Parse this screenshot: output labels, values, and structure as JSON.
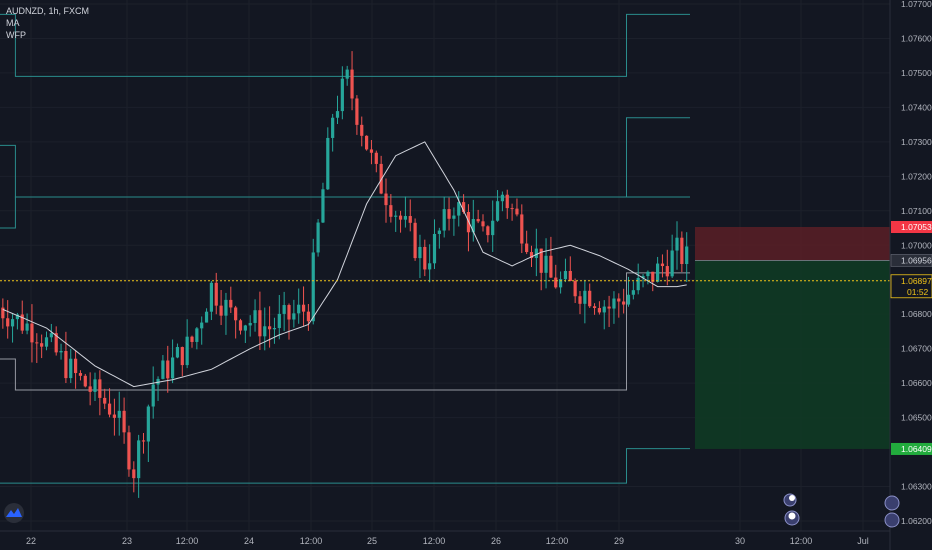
{
  "legend": {
    "symbol_line": "AUDNZD, 1h, FXCM",
    "indicator_1": "MA",
    "indicator_2": "WFP"
  },
  "colors": {
    "background": "#131722",
    "up_candle": "#26a69a",
    "down_candle": "#ef5350",
    "ma_line": "#d1d4dc",
    "pivot_line": "#2a8c8c",
    "stop_zone": "#5b1e26",
    "target_zone": "#0f3a24",
    "current_price": "#f0c419",
    "stop_tag": "#f23645",
    "target_tag": "#22ab3d"
  },
  "chart_data": {
    "type": "candlestick",
    "symbol": "AUDNZD",
    "timeframe": "1h",
    "source": "FXCM",
    "indicators": [
      "MA",
      "WFP"
    ],
    "y_ticks": [
      "1.07700",
      "1.07600",
      "1.07500",
      "1.07400",
      "1.07300",
      "1.07200",
      "1.07100",
      "1.07000",
      "1.06900",
      "1.06800",
      "1.06700",
      "1.06600",
      "1.06500",
      "1.06300",
      "1.06200"
    ],
    "x_ticks": [
      "22",
      "23",
      "12:00",
      "24",
      "12:00",
      "25",
      "12:00",
      "26",
      "12:00",
      "29",
      "30",
      "12:00",
      "Jul"
    ],
    "ylim": [
      1.0619,
      1.0775
    ],
    "current_price": {
      "value": 1.06897,
      "label": "1.06897",
      "countdown": "01:52"
    },
    "stop_level": {
      "value": 1.07053,
      "label": "1.07053"
    },
    "entry_level": {
      "value": 1.06956,
      "label": "1.06956"
    },
    "target_level": {
      "value": 1.06409,
      "label": "1.06409"
    },
    "trend": [
      [
        0,
        1.0682
      ],
      [
        8,
        1.0675
      ],
      [
        16,
        1.0662
      ],
      [
        24,
        1.0652
      ],
      [
        28,
        1.0635
      ],
      [
        32,
        1.066
      ],
      [
        40,
        1.0672
      ],
      [
        44,
        1.0688
      ],
      [
        48,
        1.068
      ],
      [
        56,
        1.0676
      ],
      [
        64,
        1.0682
      ],
      [
        66,
        1.0705
      ],
      [
        69,
        1.0738
      ],
      [
        72,
        1.0748
      ],
      [
        78,
        1.072
      ],
      [
        84,
        1.0705
      ],
      [
        88,
        1.0695
      ],
      [
        94,
        1.0712
      ],
      [
        100,
        1.0702
      ],
      [
        104,
        1.0715
      ],
      [
        110,
        1.07
      ],
      [
        114,
        1.069
      ],
      [
        122,
        1.0686
      ],
      [
        126,
        1.0682
      ],
      [
        134,
        1.069
      ],
      [
        140,
        1.0698
      ],
      [
        144,
        1.0694
      ]
    ],
    "ma_anchors": [
      [
        0,
        1.0682
      ],
      [
        10,
        1.0676
      ],
      [
        20,
        1.0665
      ],
      [
        28,
        1.0659
      ],
      [
        36,
        1.0661
      ],
      [
        44,
        1.0664
      ],
      [
        52,
        1.067
      ],
      [
        58,
        1.0674
      ],
      [
        64,
        1.0677
      ],
      [
        70,
        1.069
      ],
      [
        76,
        1.0712
      ],
      [
        82,
        1.0726
      ],
      [
        88,
        1.073
      ],
      [
        94,
        1.0716
      ],
      [
        100,
        1.0698
      ],
      [
        106,
        1.0694
      ],
      [
        112,
        1.0698
      ],
      [
        118,
        1.07
      ],
      [
        124,
        1.0697
      ],
      [
        130,
        1.0693
      ],
      [
        136,
        1.0688
      ],
      [
        140,
        1.0688
      ],
      [
        144,
        1.0689
      ]
    ],
    "pivot_levels": [
      {
        "color": "teal",
        "segments": [
          [
            -8,
            4,
            1.0767
          ],
          [
            4,
            130,
            1.0749
          ],
          [
            130,
            144,
            1.0767
          ]
        ]
      },
      {
        "color": "teal",
        "segments": [
          [
            -8,
            4,
            1.0729
          ],
          [
            4,
            130,
            1.0714
          ],
          [
            130,
            144,
            1.0737
          ]
        ]
      },
      {
        "color": "teal",
        "segments": [
          [
            -8,
            4,
            1.0705
          ],
          [
            4,
            130,
            1.0714
          ],
          [
            130,
            144,
            1.0714
          ]
        ]
      },
      {
        "color": "white",
        "segments": [
          [
            -8,
            4,
            1.0667
          ],
          [
            4,
            130,
            1.0658
          ],
          [
            130,
            144,
            1.0692
          ]
        ]
      },
      {
        "color": "teal",
        "segments": [
          [
            -8,
            4,
            1.0631
          ],
          [
            4,
            130,
            1.0631
          ],
          [
            130,
            144,
            1.0641
          ]
        ]
      }
    ]
  }
}
